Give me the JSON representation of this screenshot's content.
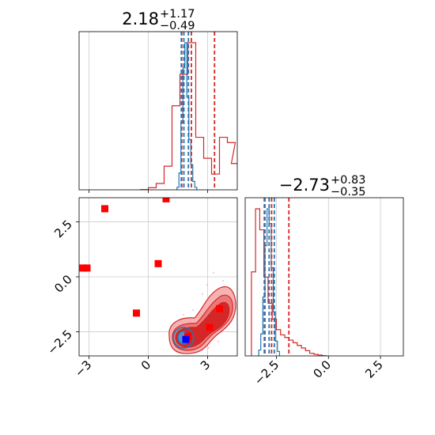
{
  "chart_data": [
    {
      "type": "histogram",
      "panel": "top-left",
      "title": {
        "value": "2.18",
        "plus": "+1.17",
        "minus": "−0.49"
      },
      "xlim": [
        -3.5,
        4.5
      ],
      "grid": true,
      "show_x_ticklabels": false,
      "series": [
        {
          "name": "",
          "color": "#d62728",
          "bins": [
            [
              -0.2,
              0.05
            ],
            [
              0.2,
              0.4
            ],
            [
              0.6,
              1.2
            ],
            [
              1.0,
              4.5
            ],
            [
              1.4,
              16
            ],
            [
              1.8,
              22
            ],
            [
              2.2,
              28
            ],
            [
              2.6,
              10
            ],
            [
              3.0,
              6
            ],
            [
              3.4,
              3
            ],
            [
              3.8,
              10
            ],
            [
              4.2,
              9
            ],
            [
              4.4,
              5
            ]
          ],
          "note": "",
          "bin_width": 0.4,
          "quantile_lines": [
            1.69,
            2.18,
            3.35
          ]
        },
        {
          "name": "",
          "color": "#1f77b4",
          "bins": [
            [
              1.5,
              3
            ],
            [
              1.6,
              20
            ],
            [
              1.7,
              80
            ],
            [
              1.8,
              145
            ],
            [
              1.9,
              175
            ],
            [
              2.0,
              110
            ],
            [
              2.1,
              60
            ],
            [
              2.2,
              30
            ],
            [
              2.3,
              10
            ],
            [
              2.4,
              3
            ]
          ],
          "bin_width": 0.1,
          "quantile_lines": [
            1.67,
            1.8,
            2.03
          ]
        }
      ]
    },
    {
      "type": "contour-scatter",
      "panel": "bottom-left",
      "xlim": [
        -3.5,
        4.5
      ],
      "ylim": [
        -3.6,
        3.6
      ],
      "xticks": [
        -3,
        0,
        3
      ],
      "xticklabels": [
        "−3",
        "0",
        "3"
      ],
      "yticks": [
        -2.5,
        0.0,
        2.5
      ],
      "yticklabels": [
        "−2.5",
        "0.0",
        "2.5"
      ],
      "grid": true,
      "series": [
        {
          "name": "",
          "color": "#ff0000",
          "marker": "square",
          "points": [
            [
              -2.2,
              3.1
            ],
            [
              -3.3,
              0.4
            ],
            [
              -3.1,
              0.4
            ],
            [
              0.5,
              0.6
            ],
            [
              -0.6,
              -1.65
            ],
            [
              0.9,
              3.55
            ],
            [
              3.6,
              -1.45
            ],
            [
              3.1,
              -2.3
            ],
            [
              2.0,
              -2.7
            ]
          ]
        },
        {
          "name": "",
          "color": "#0000ff",
          "marker": "square",
          "points": [
            [
              1.9,
              -2.85
            ]
          ]
        }
      ],
      "contours": [
        {
          "color": "#d62728",
          "level": "outer",
          "cx": 2.7,
          "cy": -2.1
        },
        {
          "color": "#1f77b4",
          "level": "inner",
          "cx": 1.9,
          "cy": -2.85
        }
      ]
    },
    {
      "type": "histogram",
      "panel": "bottom-right",
      "title": {
        "value": "−2.73",
        "plus": "+0.83",
        "minus": "−0.35"
      },
      "xlim": [
        -4.0,
        3.6
      ],
      "xticks": [
        -2.5,
        0.0,
        2.5
      ],
      "xticklabels": [
        "−2.5",
        "0.0",
        "2.5"
      ],
      "grid": true,
      "series": [
        {
          "name": "",
          "color": "#d62728",
          "bins": [
            [
              -3.6,
              16
            ],
            [
              -3.4,
              28
            ],
            [
              -3.2,
              24
            ],
            [
              -3.0,
              15
            ],
            [
              -2.8,
              10
            ],
            [
              -2.6,
              7
            ],
            [
              -2.4,
              5
            ],
            [
              -2.2,
              4
            ],
            [
              -2.0,
              3.5
            ],
            [
              -1.8,
              3
            ],
            [
              -1.6,
              2.5
            ],
            [
              -1.4,
              2
            ],
            [
              -1.2,
              1.5
            ],
            [
              -1.0,
              1
            ],
            [
              -0.8,
              0.5
            ],
            [
              -0.6,
              0.3
            ],
            [
              -0.4,
              0.15
            ],
            [
              -0.2,
              0.05
            ]
          ],
          "bin_width": 0.2,
          "quantile_lines": [
            -3.08,
            -2.73,
            -1.9
          ]
        },
        {
          "name": "",
          "color": "#1f77b4",
          "bins": [
            [
              -3.3,
              4
            ],
            [
              -3.2,
              15
            ],
            [
              -3.1,
              40
            ],
            [
              -3.0,
              75
            ],
            [
              -2.9,
              100
            ],
            [
              -2.8,
              90
            ],
            [
              -2.7,
              60
            ],
            [
              -2.6,
              30
            ],
            [
              -2.5,
              10
            ],
            [
              -2.4,
              3
            ]
          ],
          "bin_width": 0.1,
          "quantile_lines": [
            -3.05,
            -2.85,
            -2.6
          ]
        }
      ]
    }
  ]
}
